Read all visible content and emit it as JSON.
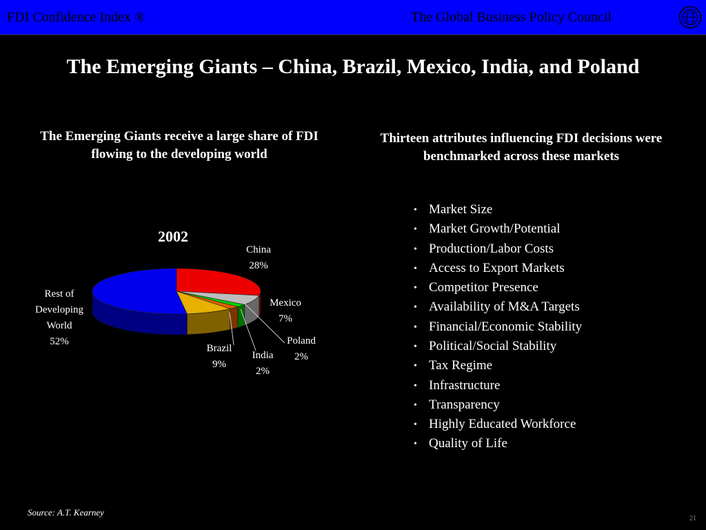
{
  "header": {
    "left_text": "FDI Confidence Index ®",
    "right_text": "The Global Business Policy Council",
    "logo_icon": "globe-seal-icon"
  },
  "title": "The Emerging Giants – China, Brazil, Mexico, India, and Poland",
  "left_heading": "The Emerging Giants receive a large share of FDI flowing to the developing world",
  "right_heading": "Thirteen attributes influencing FDI decisions were benchmarked across these markets",
  "attributes": [
    "Market Size",
    "Market Growth/Potential",
    "Production/Labor Costs",
    "Access to Export Markets",
    "Competitor Presence",
    "Availability of M&A Targets",
    "Financial/Economic Stability",
    "Political/Social Stability",
    "Tax Regime",
    "Infrastructure",
    "Transparency",
    "Highly Educated Workforce",
    "Quality of Life"
  ],
  "chart_data": {
    "type": "pie",
    "title": "2002",
    "slices": [
      {
        "label": "China",
        "value": 28,
        "value_label": "28%",
        "color": "#ee0000"
      },
      {
        "label": "Mexico",
        "value": 7,
        "value_label": "7%",
        "color": "#bdbdbd"
      },
      {
        "label": "Poland",
        "value": 2,
        "value_label": "2%",
        "color": "#00cc00"
      },
      {
        "label": "India",
        "value": 2,
        "value_label": "2%",
        "color": "#e06000"
      },
      {
        "label": "Brazil",
        "value": 9,
        "value_label": "9%",
        "color": "#e8b000"
      },
      {
        "label": "Rest of Developing World",
        "value": 52,
        "value_label": "52%",
        "color": "#0000ee"
      }
    ]
  },
  "source": "Source: A.T. Kearney",
  "page_number": "21"
}
